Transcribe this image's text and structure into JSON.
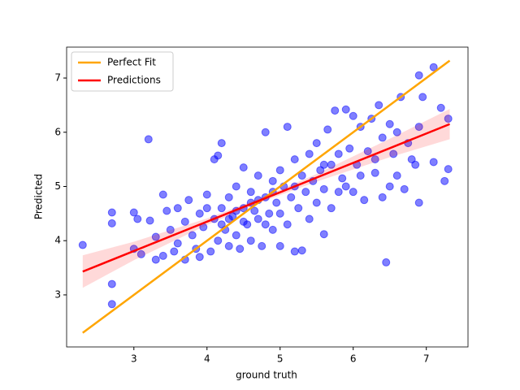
{
  "chart_data": {
    "type": "scatter",
    "xlabel": "ground truth",
    "ylabel": "Predicted",
    "xlim": [
      2.08,
      7.57
    ],
    "ylim": [
      2.04,
      7.57
    ],
    "xticks": [
      3,
      4,
      5,
      6,
      7
    ],
    "yticks": [
      3,
      4,
      5,
      6,
      7
    ],
    "grid": false,
    "legend": "upper left",
    "series": [
      {
        "name": "Perfect Fit",
        "type": "line",
        "color": "orange",
        "x": [
          2.3,
          7.32
        ],
        "values": [
          2.3,
          7.32
        ]
      },
      {
        "name": "Predictions",
        "type": "line",
        "color": "red",
        "x": [
          2.3,
          7.32
        ],
        "values": [
          3.43,
          6.15
        ],
        "band": {
          "color": "#ff0000",
          "x": [
            2.3,
            3,
            4,
            4.7,
            5.5,
            6.5,
            7.32
          ],
          "lower": [
            3.13,
            3.64,
            4.29,
            4.69,
            5.09,
            5.54,
            5.87
          ],
          "upper": [
            3.73,
            3.98,
            4.41,
            4.77,
            5.23,
            5.88,
            6.43
          ]
        }
      },
      {
        "type": "scatter",
        "color": "blue",
        "x": [
          2.3,
          2.7,
          2.7,
          2.7,
          2.7,
          3.0,
          3.0,
          3.05,
          3.1,
          3.2,
          3.22,
          3.3,
          3.3,
          3.4,
          3.4,
          3.45,
          3.5,
          3.55,
          3.6,
          3.6,
          3.7,
          3.7,
          3.75,
          3.8,
          3.85,
          3.9,
          3.9,
          3.95,
          4.0,
          4.0,
          4.05,
          4.1,
          4.1,
          4.15,
          4.15,
          4.2,
          4.2,
          4.25,
          4.3,
          4.3,
          4.35,
          4.4,
          4.4,
          4.45,
          4.5,
          4.5,
          4.55,
          4.6,
          4.6,
          4.65,
          4.7,
          4.7,
          4.75,
          4.8,
          4.8,
          4.85,
          4.9,
          4.9,
          4.95,
          5.0,
          5.0,
          5.0,
          5.05,
          5.1,
          5.1,
          5.15,
          5.2,
          5.2,
          5.25,
          5.3,
          5.3,
          5.35,
          5.4,
          5.4,
          5.45,
          5.5,
          5.5,
          5.55,
          5.6,
          5.6,
          5.65,
          5.7,
          5.7,
          5.75,
          5.8,
          5.8,
          5.85,
          5.9,
          5.9,
          5.95,
          6.0,
          6.0,
          6.05,
          6.1,
          6.1,
          6.15,
          6.2,
          6.25,
          6.3,
          6.3,
          6.35,
          6.4,
          6.4,
          6.45,
          6.5,
          6.5,
          6.55,
          6.6,
          6.6,
          6.65,
          6.7,
          6.75,
          6.8,
          6.85,
          6.9,
          6.9,
          6.95,
          6.9,
          7.1,
          7.1,
          7.2,
          7.25,
          7.3,
          7.3,
          4.5,
          4.6,
          4.7,
          4.4,
          4.8,
          4.3,
          5.2,
          4.9,
          4.2,
          5.6
        ],
        "values": [
          3.92,
          4.52,
          4.32,
          3.2,
          2.83,
          4.52,
          3.85,
          4.4,
          3.75,
          5.87,
          4.37,
          3.65,
          4.07,
          4.85,
          3.72,
          4.55,
          4.2,
          3.8,
          4.6,
          3.95,
          4.35,
          3.65,
          4.75,
          4.1,
          3.85,
          4.5,
          3.7,
          4.25,
          4.6,
          4.85,
          3.8,
          4.4,
          5.5,
          4.0,
          5.57,
          5.8,
          4.6,
          4.2,
          3.9,
          4.8,
          4.45,
          5.0,
          4.1,
          3.85,
          4.6,
          5.35,
          4.3,
          4.9,
          4.0,
          4.55,
          5.2,
          4.4,
          3.9,
          4.8,
          6.0,
          4.5,
          5.1,
          4.2,
          4.7,
          5.3,
          4.5,
          3.9,
          5.0,
          4.3,
          6.1,
          4.8,
          5.5,
          3.8,
          4.6,
          5.2,
          3.82,
          4.9,
          5.6,
          4.4,
          5.1,
          5.8,
          4.7,
          5.3,
          4.12,
          4.95,
          6.05,
          5.4,
          4.6,
          6.4,
          5.6,
          4.9,
          5.15,
          6.42,
          5.0,
          5.7,
          6.3,
          4.9,
          5.4,
          6.1,
          5.2,
          4.75,
          5.65,
          6.25,
          5.5,
          5.25,
          6.5,
          4.8,
          5.9,
          3.6,
          6.15,
          5.0,
          5.6,
          6.0,
          5.2,
          6.65,
          4.95,
          5.8,
          5.5,
          5.4,
          7.05,
          4.7,
          6.65,
          6.1,
          7.2,
          5.45,
          6.45,
          5.1,
          6.25,
          5.32,
          4.35,
          4.7,
          4.75,
          4.55,
          4.3,
          4.4,
          5.0,
          4.9,
          4.3,
          5.4
        ]
      }
    ]
  }
}
